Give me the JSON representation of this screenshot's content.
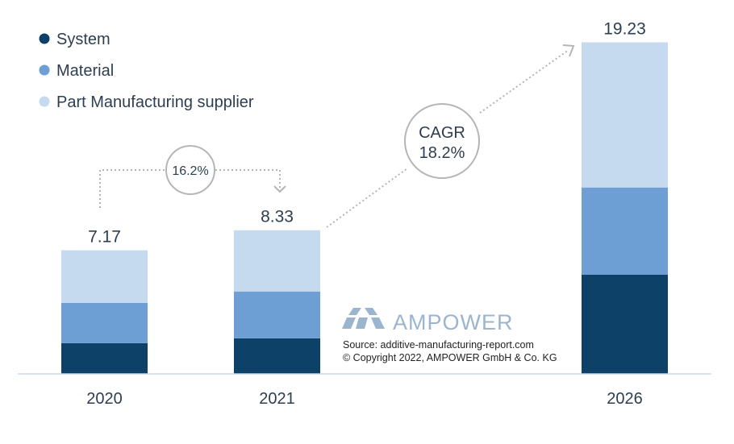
{
  "chart_data": {
    "type": "bar",
    "stacked": true,
    "categories": [
      "2020",
      "2021",
      "2026"
    ],
    "totals": [
      "7.17",
      "8.33",
      "19.23"
    ],
    "series": [
      {
        "name": "System",
        "color": "#0d4168",
        "values": [
          1.78,
          2.06,
          5.76
        ]
      },
      {
        "name": "Material",
        "color": "#6d9fd5",
        "values": [
          2.34,
          2.72,
          5.05
        ]
      },
      {
        "name": "Part Manufacturing supplier",
        "color": "#c6daef",
        "values": [
          3.05,
          3.55,
          8.42
        ]
      }
    ],
    "ylim": [
      0,
      20
    ],
    "grid": false,
    "legend_position": "top-left",
    "annotations": {
      "growth_2020_2021": "16.2%",
      "cagr_label": "CAGR",
      "cagr_value": "18.2%"
    }
  },
  "branding": {
    "logo_text": "AMPOWER",
    "logo_color": "#9bb5cf",
    "source": "Source: additive-manufacturing-report.com",
    "copyright": "© Copyright 2022, AMPOWER GmbH & Co. KG"
  }
}
